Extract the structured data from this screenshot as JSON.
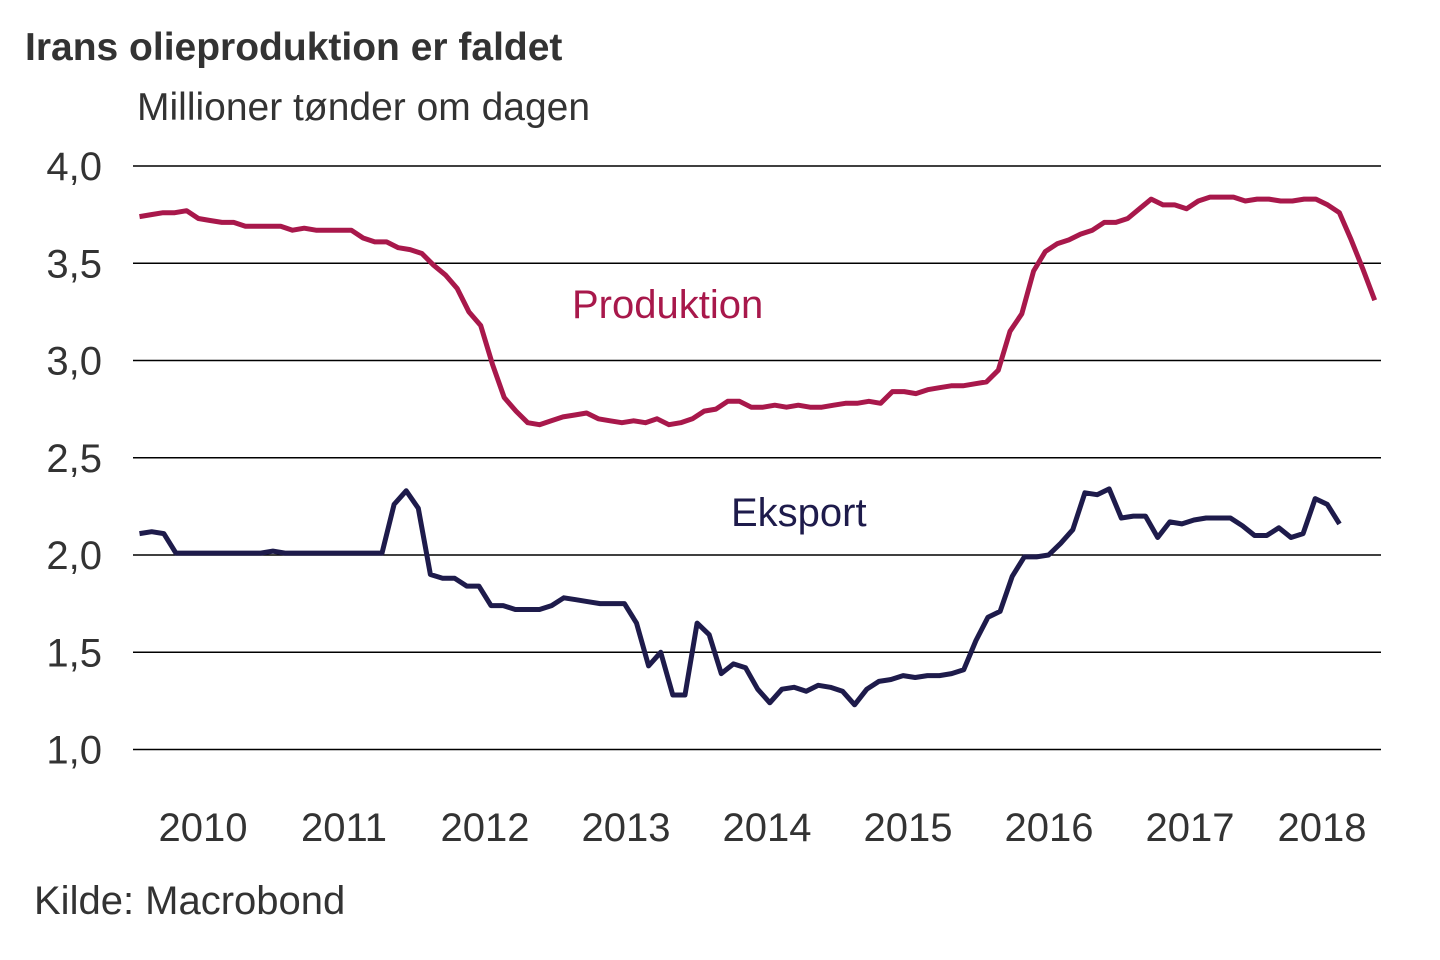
{
  "colors": {
    "production": "#a8184b",
    "export": "#1e1b4b",
    "grid": "#000000",
    "text": "#333333"
  },
  "chart_data": {
    "type": "line",
    "title": "Irans olieproduktion er faldet",
    "subtitle": "Millioner tønder om dagen",
    "source": "Kilde: Macrobond",
    "xlabel": "",
    "ylabel": "Millioner tønder om dagen",
    "ylim": [
      1.0,
      4.0
    ],
    "yticks": [
      4.0,
      3.5,
      3.0,
      2.5,
      2.0,
      1.5,
      1.0
    ],
    "ytick_labels": [
      "4,0",
      "3,5",
      "3,0",
      "2,5",
      "2,0",
      "1,5",
      "1,0"
    ],
    "xticks": [
      2010,
      2011,
      2012,
      2013,
      2014,
      2015,
      2016,
      2017,
      2018
    ],
    "xtick_labels": [
      "2010",
      "2011",
      "2012",
      "2013",
      "2014",
      "2015",
      "2016",
      "2017",
      "2018"
    ],
    "grid": true,
    "series": [
      {
        "name": "Produktion",
        "x_start": 2010.05,
        "x_end": 2018.81,
        "values": [
          3.74,
          3.75,
          3.76,
          3.76,
          3.77,
          3.73,
          3.72,
          3.71,
          3.71,
          3.69,
          3.69,
          3.69,
          3.69,
          3.67,
          3.68,
          3.67,
          3.67,
          3.67,
          3.67,
          3.63,
          3.61,
          3.61,
          3.58,
          3.57,
          3.55,
          3.49,
          3.44,
          3.37,
          3.25,
          3.18,
          2.98,
          2.81,
          2.74,
          2.68,
          2.67,
          2.69,
          2.71,
          2.72,
          2.73,
          2.7,
          2.69,
          2.68,
          2.69,
          2.68,
          2.7,
          2.67,
          2.68,
          2.7,
          2.74,
          2.75,
          2.79,
          2.79,
          2.76,
          2.76,
          2.77,
          2.76,
          2.77,
          2.76,
          2.76,
          2.77,
          2.78,
          2.78,
          2.79,
          2.78,
          2.84,
          2.84,
          2.83,
          2.85,
          2.86,
          2.87,
          2.87,
          2.88,
          2.89,
          2.95,
          3.15,
          3.24,
          3.46,
          3.56,
          3.6,
          3.62,
          3.65,
          3.67,
          3.71,
          3.71,
          3.73,
          3.78,
          3.83,
          3.8,
          3.8,
          3.78,
          3.82,
          3.84,
          3.84,
          3.84,
          3.82,
          3.83,
          3.83,
          3.82,
          3.82,
          3.83,
          3.83,
          3.8,
          3.76,
          3.62,
          3.47,
          3.31
        ]
      },
      {
        "name": "Eksport",
        "x_start": 2010.05,
        "x_end": 2018.56,
        "values": [
          2.11,
          2.12,
          2.11,
          2.01,
          2.01,
          2.01,
          2.01,
          2.01,
          2.01,
          2.01,
          2.01,
          2.02,
          2.01,
          2.01,
          2.01,
          2.01,
          2.01,
          2.01,
          2.01,
          2.01,
          2.01,
          2.26,
          2.33,
          2.24,
          1.9,
          1.88,
          1.88,
          1.84,
          1.84,
          1.74,
          1.74,
          1.72,
          1.72,
          1.72,
          1.74,
          1.78,
          1.77,
          1.76,
          1.75,
          1.75,
          1.75,
          1.65,
          1.43,
          1.5,
          1.28,
          1.28,
          1.65,
          1.59,
          1.39,
          1.44,
          1.42,
          1.31,
          1.24,
          1.31,
          1.32,
          1.3,
          1.33,
          1.32,
          1.3,
          1.23,
          1.31,
          1.35,
          1.36,
          1.38,
          1.37,
          1.38,
          1.38,
          1.39,
          1.41,
          1.56,
          1.68,
          1.71,
          1.89,
          1.99,
          1.99,
          2.0,
          2.06,
          2.13,
          2.32,
          2.31,
          2.34,
          2.19,
          2.2,
          2.2,
          2.09,
          2.17,
          2.16,
          2.18,
          2.19,
          2.19,
          2.19,
          2.15,
          2.1,
          2.1,
          2.14,
          2.09,
          2.11,
          2.29,
          2.26,
          2.16
        ]
      }
    ],
    "annotations": [
      "Produktion",
      "Eksport"
    ]
  }
}
